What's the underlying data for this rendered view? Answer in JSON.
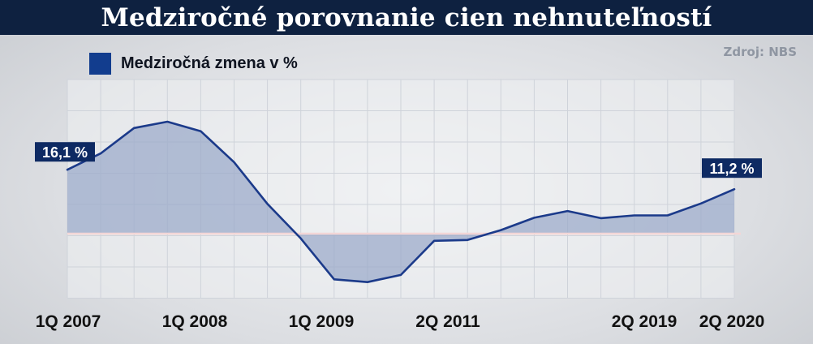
{
  "title": "Medziročné porovnanie cien nehnuteľností",
  "source": "Zdroj: NBS",
  "legend_label": "Medziročná zmena v %",
  "colors": {
    "header_bg": "#0e2140",
    "line": "#1b3a8a",
    "area_fill": "#9aa9c9",
    "zero_line": "#f3d6d6",
    "label_bg": "#0e2a63"
  },
  "chart_data": {
    "type": "area",
    "series": [
      {
        "name": "Medziročná zmena v %",
        "values": [
          16.1,
          20.2,
          26.6,
          28.2,
          25.8,
          18.0,
          7.5,
          -1.2,
          -11.5,
          -12.2,
          -10.4,
          -1.8,
          -1.6,
          0.9,
          4.0,
          5.7,
          3.9,
          4.6,
          4.6,
          7.6,
          11.2
        ]
      }
    ],
    "x_labels": [
      "1Q 2007",
      "1Q 2008",
      "1Q 2009",
      "2Q 2011",
      "2Q 2019",
      "2Q 2020"
    ],
    "value_labels": [
      {
        "text": "16,1 %",
        "point": 0
      },
      {
        "text": "11,2 %",
        "point": 20
      }
    ],
    "ylim": [
      -15,
      32
    ],
    "grid": true,
    "legend_position": "top-left"
  }
}
